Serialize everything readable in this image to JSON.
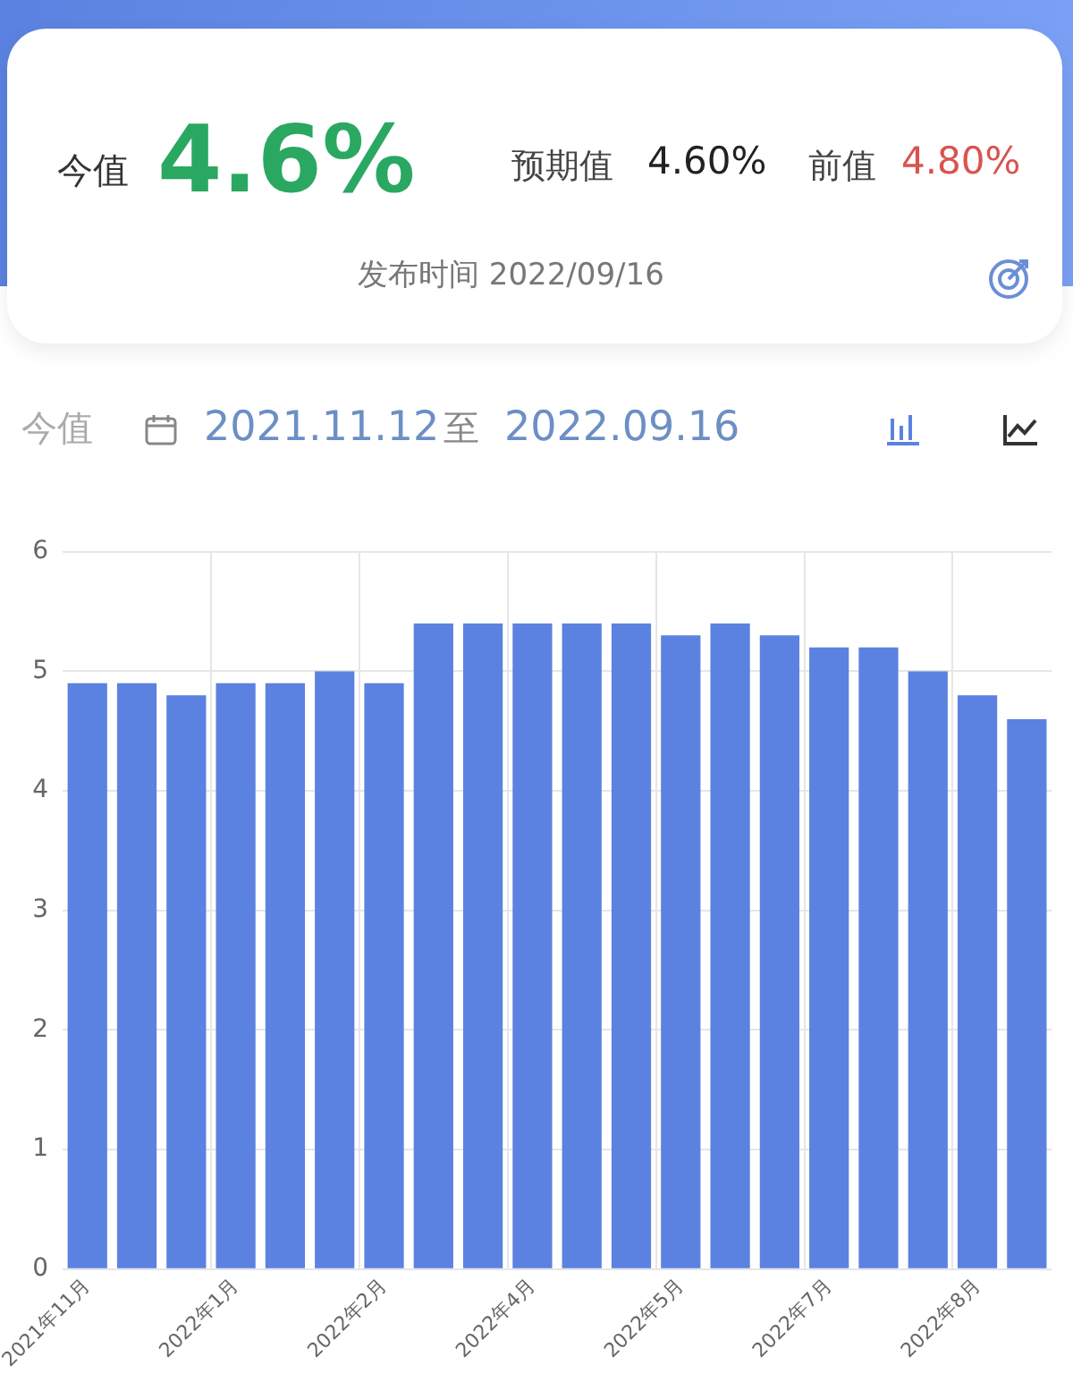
{
  "chart_data": {
    "type": "bar",
    "annotations": [
      "今值",
      "4.6%",
      "预期值",
      "4.60%",
      "前值",
      "4.80%",
      "发布时间 2022/09/16",
      "今值",
      "2021.11.12",
      "至",
      "2022.09.16"
    ],
    "categories": [
      "2021年11月",
      null,
      null,
      "2022年1月",
      null,
      null,
      "2022年2月",
      null,
      null,
      "2022年4月",
      null,
      null,
      "2022年5月",
      null,
      null,
      "2022年7月",
      null,
      null,
      "2022年8月",
      null
    ],
    "values": [
      4.9,
      4.9,
      4.8,
      4.9,
      4.9,
      5.0,
      4.9,
      5.4,
      5.4,
      5.4,
      5.4,
      5.4,
      5.3,
      5.4,
      5.3,
      5.2,
      5.2,
      5.0,
      4.8,
      4.6
    ],
    "color": "#5b82e0",
    "ylim": [
      0,
      6
    ],
    "yticks": [
      0,
      1,
      2,
      3,
      4,
      5,
      6
    ],
    "grid": true
  }
}
